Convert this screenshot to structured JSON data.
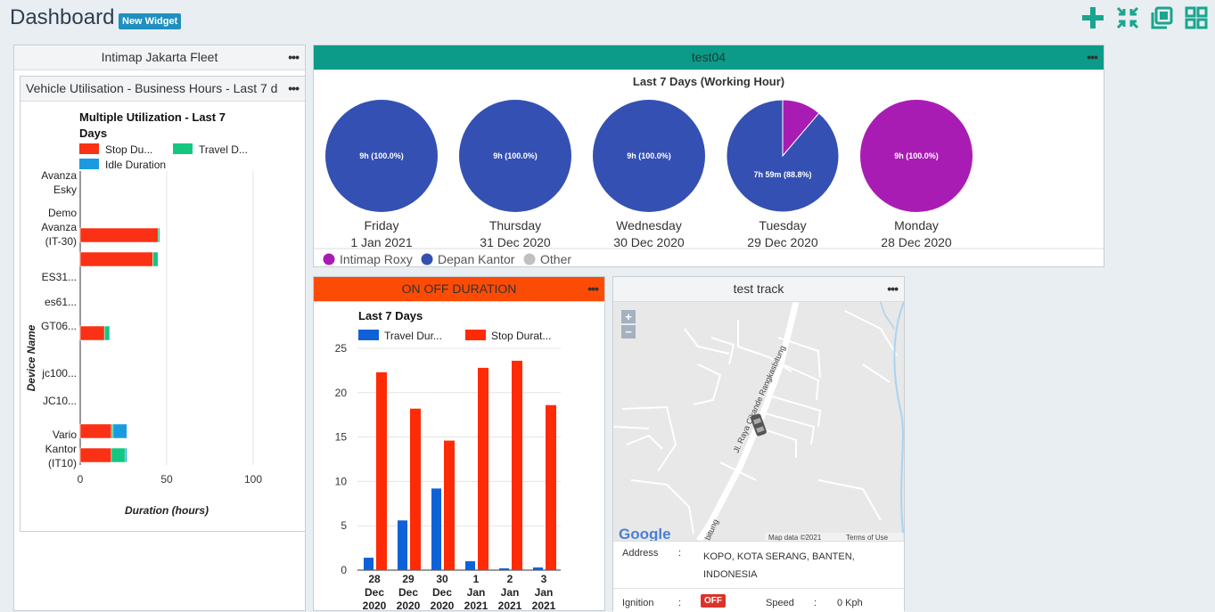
{
  "header": {
    "title": "Dashboard",
    "new_widget": "New Widget",
    "icons": [
      "add-icon",
      "collapse-icon",
      "duplicate-icon",
      "grid-icon"
    ],
    "accent": "#19a58f"
  },
  "fleet_panel": {
    "title": "Intimap Jakarta Fleet",
    "menu": "•••"
  },
  "util_panel": {
    "title": "Vehicle Utilisation - Business Hours - Last 7 d",
    "menu": "•••",
    "chart_title_line1": "Multiple Utilization - Last 7",
    "chart_title_line2": "Days",
    "legend": [
      {
        "name": "Stop Du...",
        "color": "#fa3114"
      },
      {
        "name": "Travel D...",
        "color": "#13c781"
      },
      {
        "name": "Idle Duration",
        "color": "#1a9be0"
      }
    ],
    "y_axis_label": "Device Name",
    "x_axis_label": "Duration (hours)",
    "x_ticks": [
      "0",
      "50",
      "100"
    ],
    "devices": [
      {
        "lines": [
          "Avanza",
          "Esky"
        ]
      },
      {
        "lines": [
          "Demo",
          "Avanza",
          "(IT-30)"
        ]
      },
      {
        "lines": [
          "ES31..."
        ]
      },
      {
        "lines": [
          "es61..."
        ]
      },
      {
        "lines": [
          "GT06..."
        ]
      },
      {
        "lines": [
          "jc100..."
        ]
      },
      {
        "lines": [
          "JC10..."
        ]
      },
      {
        "lines": [
          "Vario",
          "Kantor",
          "(IT10)"
        ]
      }
    ]
  },
  "chart_data": [
    {
      "type": "bar",
      "title": "Multiple Utilization - Last 7 Days",
      "orientation": "horizontal",
      "xlabel": "Duration (hours)",
      "ylabel": "Device Name",
      "xlim": [
        0,
        100
      ],
      "bars": [
        {
          "device": "Demo Avanza (IT-30)",
          "stop": 45,
          "travel": 1,
          "idle": 0
        },
        {
          "device": "Demo Avanza (IT-30)",
          "stop": 42,
          "travel": 3,
          "idle": 0
        },
        {
          "device": "GT06...",
          "stop": 14,
          "travel": 3,
          "idle": 0
        },
        {
          "device": "Vario Kantor (IT10)",
          "stop": 18,
          "travel": 1,
          "idle": 8
        },
        {
          "device": "Vario Kantor (IT10)",
          "stop": 18,
          "travel": 8,
          "idle": 1
        }
      ]
    },
    {
      "type": "pie",
      "title": "Last 7 Days (Working Hour)",
      "pies": [
        {
          "day": "Friday",
          "date": "1 Jan 2021",
          "slices": [
            {
              "series": "Depan Kantor",
              "value": 100,
              "label": "9h (100.0%)"
            }
          ]
        },
        {
          "day": "Thursday",
          "date": "31 Dec 2020",
          "slices": [
            {
              "series": "Depan Kantor",
              "value": 100,
              "label": "9h (100.0%)"
            }
          ]
        },
        {
          "day": "Wednesday",
          "date": "30 Dec 2020",
          "slices": [
            {
              "series": "Depan Kantor",
              "value": 100,
              "label": "9h (100.0%)"
            }
          ]
        },
        {
          "day": "Tuesday",
          "date": "29 Dec 2020",
          "slices": [
            {
              "series": "Depan Kantor",
              "value": 88.8,
              "label": "7h 59m (88.8%)"
            },
            {
              "series": "Intimap Roxy",
              "value": 11.2,
              "label": ""
            }
          ]
        },
        {
          "day": "Monday",
          "date": "28 Dec 2020",
          "slices": [
            {
              "series": "Intimap Roxy",
              "value": 100,
              "label": "9h (100.0%)"
            }
          ]
        }
      ],
      "legend": [
        {
          "name": "Intimap Roxy",
          "color": "#a91cb4"
        },
        {
          "name": "Depan Kantor",
          "color": "#3450b2"
        },
        {
          "name": "Other",
          "color": "#c0c0c0"
        }
      ]
    },
    {
      "type": "bar",
      "title": "Last 7 Days",
      "categories": [
        [
          "28",
          "Dec",
          "2020"
        ],
        [
          "29",
          "Dec",
          "2020"
        ],
        [
          "30",
          "Dec",
          "2020"
        ],
        [
          "1",
          "Jan",
          "2021"
        ],
        [
          "2",
          "Jan",
          "2021"
        ],
        [
          "3",
          "Jan",
          "2021"
        ]
      ],
      "ylim": [
        0,
        25
      ],
      "yticks": [
        0,
        5,
        10,
        15,
        20,
        25
      ],
      "series": [
        {
          "name": "Travel Dur...",
          "color": "#0f61d8",
          "values": [
            1.4,
            5.6,
            9.2,
            1.0,
            0.2,
            0.3
          ]
        },
        {
          "name": "Stop Durat...",
          "color": "#ff2b06",
          "values": [
            22.3,
            18.2,
            14.6,
            22.8,
            23.6,
            18.6
          ]
        }
      ]
    }
  ],
  "test04_panel": {
    "title": "test04",
    "menu": "•••",
    "accent": "#0c9b88"
  },
  "onoff_panel": {
    "title": "ON OFF DURATION",
    "menu": "•••",
    "accent": "#fc4b05"
  },
  "track_panel": {
    "title": "test track",
    "menu": "•••",
    "map": {
      "zoom_in": "+",
      "zoom_out": "−",
      "road_label_1": "Jl. Raya Cikande Rangkasbitung",
      "road_label_2": "bitung",
      "google": "Google",
      "map_data": "Map data ©2021",
      "terms": "Terms of Use"
    },
    "address_label": "Address",
    "address_value_line1": "KOPO, KOTA SERANG, BANTEN,",
    "address_value_line2": "INDONESIA",
    "ignition_label": "Ignition",
    "ignition_value": "OFF",
    "speed_label": "Speed",
    "speed_value": "0 Kph",
    "colon": ":"
  }
}
